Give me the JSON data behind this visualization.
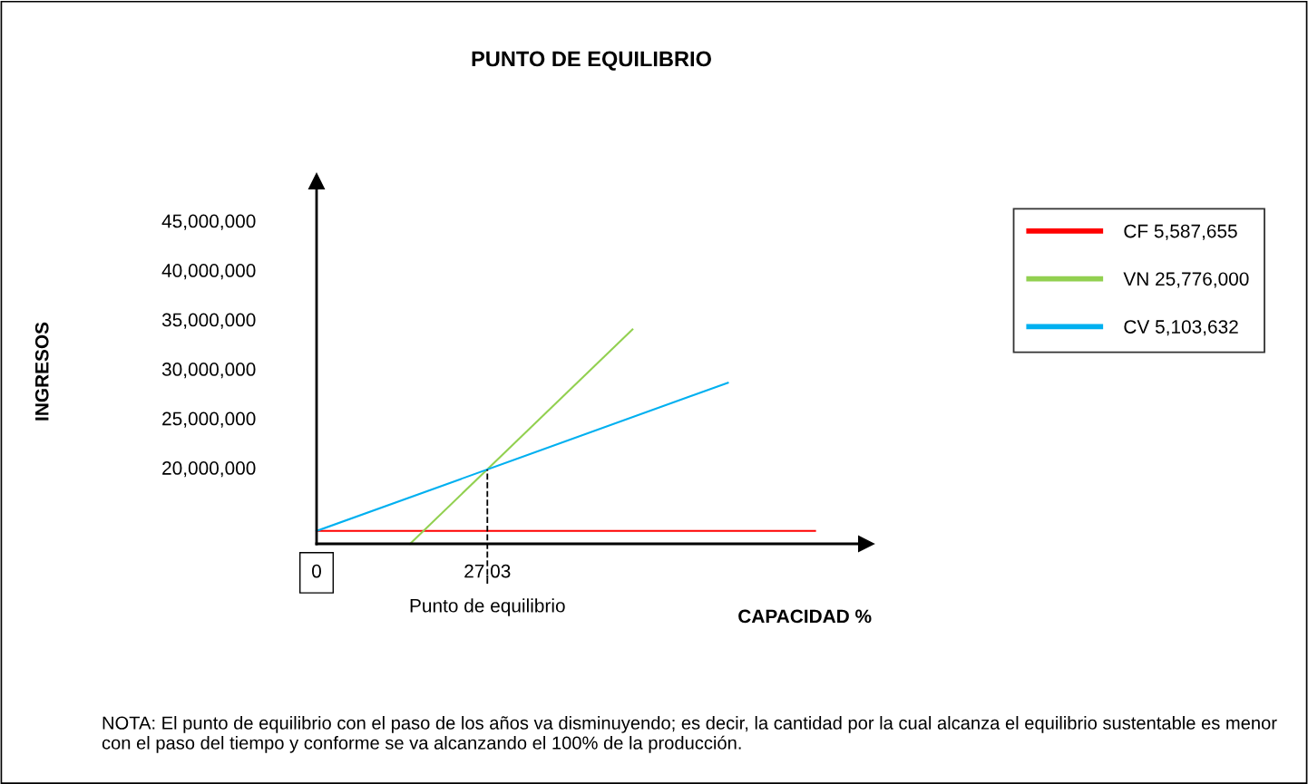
{
  "chart_data": {
    "type": "line",
    "title": "PUNTO DE EQUILIBRIO",
    "xlabel": "CAPACIDAD %",
    "xlim": [
      0,
      87
    ],
    "ylim": [
      12300000,
      49000000
    ],
    "xticks": [
      {
        "value": 0,
        "label": "0"
      },
      {
        "value": 27.03,
        "label": "27.03"
      }
    ],
    "yticks": [
      {
        "value": 20000000,
        "label": "20,000,000"
      },
      {
        "value": 25000000,
        "label": "25,000,000"
      },
      {
        "value": 30000000,
        "label": "30,000,000"
      },
      {
        "value": 35000000,
        "label": "35,000,000"
      },
      {
        "value": 40000000,
        "label": "40,000,000"
      },
      {
        "value": 45000000,
        "label": "45,000,000"
      }
    ],
    "series": [
      {
        "name": "CF 5,587,655",
        "color": "#ff0000",
        "x": [
          0,
          78.9
        ],
        "values": [
          13600000,
          13600000
        ]
      },
      {
        "name": "VN 25,776,000",
        "color": "#92d050",
        "x": [
          14.8,
          50.0
        ],
        "values": [
          12300000,
          34000000
        ]
      },
      {
        "name": "CV 5,103,632",
        "color": "#00b0f0",
        "x": [
          0,
          65.1
        ],
        "values": [
          13600000,
          28600000
        ]
      }
    ],
    "ref_lines": [
      {
        "axis": "x",
        "value": 27.03,
        "label": "Punto de equilibrio",
        "color": "#000000",
        "line_style": "dashed"
      }
    ],
    "legend": "right",
    "grid": false,
    "marker": "none",
    "line_style": "solid",
    "annotations": [
      "INGRESOS",
      "NOTA: El punto de equilibrio con el paso de los años va disminuyendo; es decir, la cantidad por la cual alcanza el equilibrio sustentable es menor con el paso del tiempo y conforme se va alcanzando el 100% de la producción."
    ]
  }
}
